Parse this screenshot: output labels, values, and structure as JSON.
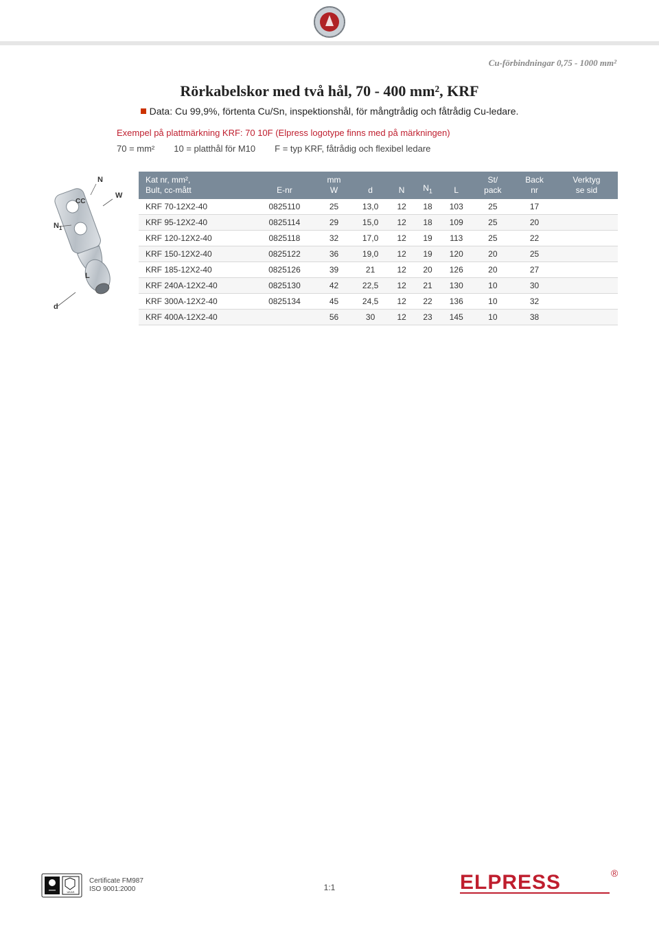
{
  "breadcrumb": "Cu-förbindningar 0,75 - 1000 mm²",
  "title": "Rörkabelskor med två hål, 70 - 400 mm², KRF",
  "subtitle": "Data: Cu 99,9%, förtenta Cu/Sn, inspektionshål, för mångtrådig och fåtrådig Cu-ledare.",
  "example_title": "Exempel på plattmärkning KRF: 70 10F (Elpress logotype finns med på märkningen)",
  "example_parts": [
    "70 = mm²",
    "10 = platthål för M10",
    "F = typ KRF, fåtrådig och flexibel ledare"
  ],
  "columns": [
    {
      "key": "c0",
      "label": "Kat nr, mm²,\nBult, cc-mått",
      "align": "left",
      "width": "22%"
    },
    {
      "key": "c1",
      "label": "E-nr",
      "width": "12%"
    },
    {
      "key": "c2",
      "label": "mm\nW",
      "width": "7%"
    },
    {
      "key": "c3",
      "label": "d",
      "width": "7%"
    },
    {
      "key": "c4",
      "label": "N",
      "width": "5%"
    },
    {
      "key": "c5",
      "label": "N₁",
      "width": "5%"
    },
    {
      "key": "c6",
      "label": "L",
      "width": "6%"
    },
    {
      "key": "c7",
      "label": "St/\npack",
      "width": "8%"
    },
    {
      "key": "c8",
      "label": "Back\nnr",
      "width": "8%"
    },
    {
      "key": "c9",
      "label": "Verktyg\nse sid",
      "width": "12%"
    }
  ],
  "rows": [
    [
      "KRF 70-12X2-40",
      "0825110",
      "25",
      "13,0",
      "12",
      "18",
      "103",
      "25",
      "17",
      ""
    ],
    [
      "KRF 95-12X2-40",
      "0825114",
      "29",
      "15,0",
      "12",
      "18",
      "109",
      "25",
      "20",
      ""
    ],
    [
      "KRF 120-12X2-40",
      "0825118",
      "32",
      "17,0",
      "12",
      "19",
      "113",
      "25",
      "22",
      ""
    ],
    [
      "KRF 150-12X2-40",
      "0825122",
      "36",
      "19,0",
      "12",
      "19",
      "120",
      "20",
      "25",
      ""
    ],
    [
      "KRF 185-12X2-40",
      "0825126",
      "39",
      "21",
      "12",
      "20",
      "126",
      "20",
      "27",
      ""
    ],
    [
      "KRF 240A-12X2-40",
      "0825130",
      "42",
      "22,5",
      "12",
      "21",
      "130",
      "10",
      "30",
      ""
    ],
    [
      "KRF 300A-12X2-40",
      "0825134",
      "45",
      "24,5",
      "12",
      "22",
      "136",
      "10",
      "32",
      ""
    ],
    [
      "KRF 400A-12X2-40",
      "",
      "56",
      "30",
      "12",
      "23",
      "145",
      "10",
      "38",
      ""
    ]
  ],
  "footer": {
    "cert_line1": "Certificate FM987",
    "cert_line2": "ISO 9001:2000",
    "page": "1:1",
    "brand": "ELPRESS"
  },
  "colors": {
    "header_bg": "#7a8a99",
    "header_fg": "#ffffff",
    "accent_red": "#bf1e2e",
    "row_alt": "#f6f6f6",
    "border": "#d8d8d8",
    "breadcrumb": "#888888",
    "band": "#e6e6e6"
  },
  "diagram_labels": [
    "N",
    "W",
    "CC",
    "N₁",
    "L",
    "d"
  ]
}
